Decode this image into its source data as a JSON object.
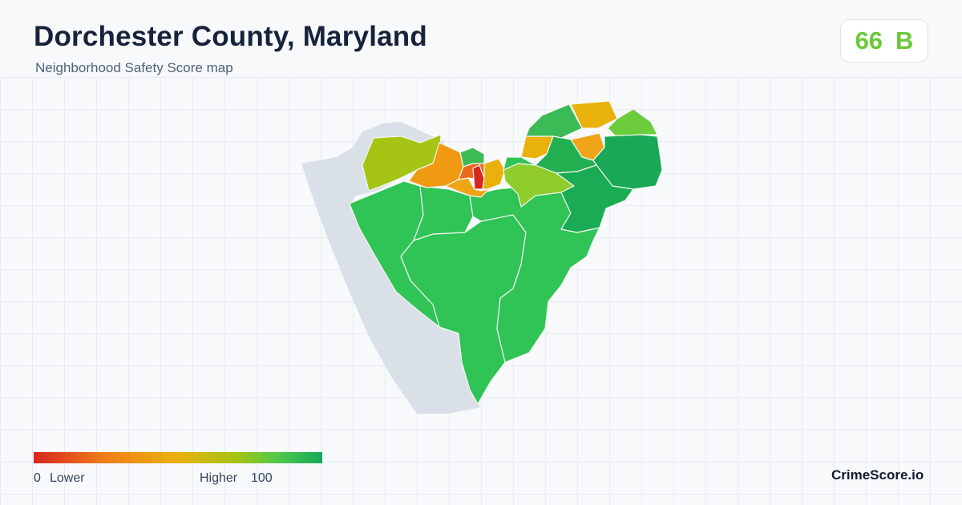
{
  "header": {
    "title": "Dorchester County, Maryland",
    "subtitle": "Neighborhood Safety Score map"
  },
  "score": {
    "value": "66",
    "grade": "B",
    "color": "#6cc93a"
  },
  "legend": {
    "min": "0",
    "low_label": "Lower",
    "high_label": "Higher",
    "max": "100",
    "colors": [
      "#d7261e",
      "#ef7f1a",
      "#e9b10c",
      "#a6c414",
      "#4fc84a",
      "#15a85a"
    ]
  },
  "brand": "CrimeScore.io",
  "map": {
    "water_color": "#d9e0e7",
    "regions": [
      {
        "id": "west-creek",
        "fill": "#a6c414"
      },
      {
        "id": "cambridge-west",
        "fill": "#ef9a12"
      },
      {
        "id": "cambridge-north",
        "fill": "#3bbb55"
      },
      {
        "id": "cambridge-core",
        "fill": "#ea6a1e"
      },
      {
        "id": "cambridge-downtown",
        "fill": "#d7261e"
      },
      {
        "id": "cambridge-east",
        "fill": "#e9b10c"
      },
      {
        "id": "cambridge-bay",
        "fill": "#f0a418"
      },
      {
        "id": "east-new-market",
        "fill": "#8fcc2c"
      },
      {
        "id": "north-south",
        "fill": "#e9b10c"
      },
      {
        "id": "north-center",
        "fill": "#e9b10c"
      },
      {
        "id": "north-west",
        "fill": "#3bbb55"
      },
      {
        "id": "north-east",
        "fill": "#6ccc3c"
      },
      {
        "id": "north-middle",
        "fill": "#f0a418"
      },
      {
        "id": "northeast-large",
        "fill": "#18a856"
      },
      {
        "id": "east-central",
        "fill": "#1aab55"
      },
      {
        "id": "hurlock",
        "fill": "#22b050"
      },
      {
        "id": "south-center",
        "fill": "#2fc455"
      },
      {
        "id": "southwest",
        "fill": "#2fc455"
      },
      {
        "id": "central",
        "fill": "#2fc455"
      },
      {
        "id": "south",
        "fill": "#2fc455"
      },
      {
        "id": "east-south",
        "fill": "#2fc455"
      }
    ]
  }
}
